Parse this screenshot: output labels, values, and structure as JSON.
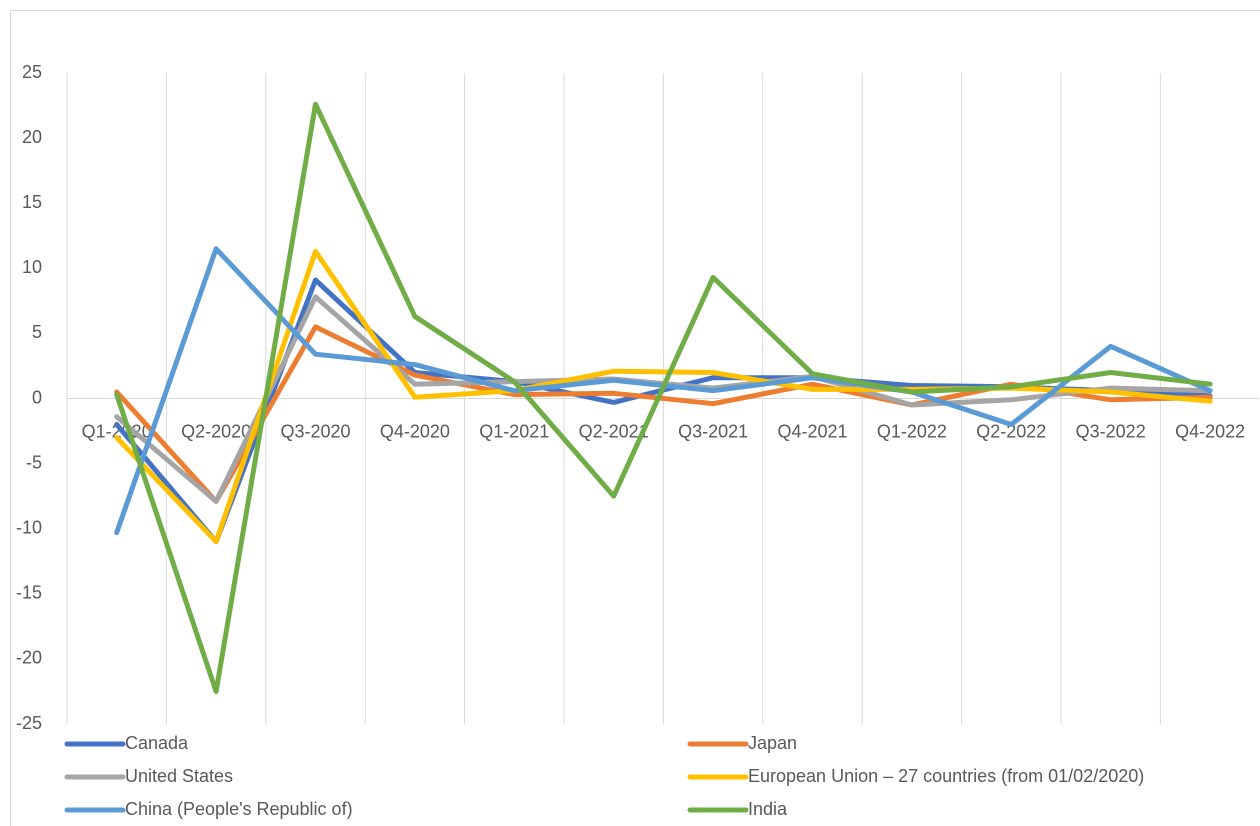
{
  "chart_data": {
    "type": "line",
    "categories": [
      "Q1-2020",
      "Q2-2020",
      "Q3-2020",
      "Q4-2020",
      "Q1-2021",
      "Q2-2021",
      "Q3-2021",
      "Q4-2021",
      "Q1-2022",
      "Q2-2022",
      "Q3-2022",
      "Q4-2022"
    ],
    "series": [
      {
        "name": "Canada",
        "color": "#4472c4",
        "values": [
          -2.0,
          -11.0,
          9.1,
          2.0,
          1.3,
          -0.3,
          1.6,
          1.6,
          1.0,
          0.9,
          0.6,
          0.2
        ]
      },
      {
        "name": "Japan",
        "color": "#ed7d31",
        "values": [
          0.5,
          -7.9,
          5.5,
          1.8,
          0.3,
          0.4,
          -0.4,
          1.1,
          -0.5,
          1.1,
          -0.1,
          0.1
        ]
      },
      {
        "name": "United States",
        "color": "#a5a5a5",
        "values": [
          -1.4,
          -7.9,
          7.8,
          1.1,
          1.3,
          1.5,
          0.8,
          1.7,
          -0.5,
          -0.1,
          0.8,
          0.6
        ]
      },
      {
        "name": "European Union – 27 countries (from 01/02/2020)",
        "color": "#ffc000",
        "values": [
          -3.0,
          -11.0,
          11.3,
          0.1,
          0.6,
          2.1,
          2.0,
          0.7,
          0.7,
          0.8,
          0.5,
          -0.2
        ]
      },
      {
        "name": "China (People's Republic of)",
        "color": "#5b9bd5",
        "values": [
          -10.3,
          11.5,
          3.4,
          2.6,
          0.6,
          1.4,
          0.6,
          1.6,
          0.5,
          -2.0,
          4.0,
          0.6
        ]
      },
      {
        "name": "India",
        "color": "#70ad47",
        "values": [
          0.3,
          -22.5,
          22.6,
          6.3,
          1.3,
          -7.5,
          9.3,
          1.9,
          0.5,
          0.9,
          2.0,
          1.1
        ]
      }
    ],
    "ylim": [
      -25,
      25
    ],
    "yticks": [
      -25,
      -20,
      -15,
      -10,
      -5,
      0,
      5,
      10,
      15,
      20,
      25
    ],
    "xgrid": true,
    "legend": "bottom"
  }
}
